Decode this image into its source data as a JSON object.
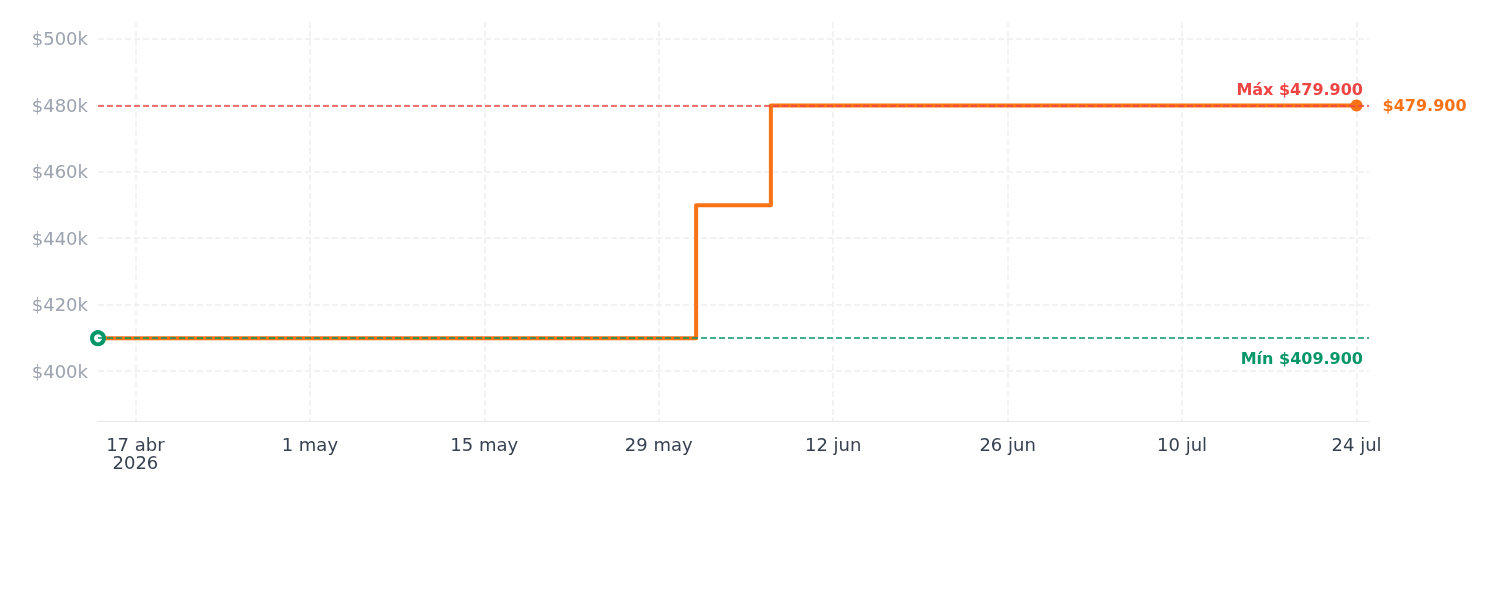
{
  "chart_data": {
    "type": "step",
    "x": [
      "2026-04-14",
      "2026-06-01",
      "2026-06-07",
      "2026-07-24"
    ],
    "series": [
      {
        "color": "#f97316",
        "values": [
          409900,
          449900,
          479900,
          479900
        ]
      }
    ],
    "xlim": [
      "2026-04-14",
      "2026-07-25"
    ],
    "xticks": [
      {
        "value": "2026-04-17",
        "label": "17 abr\n2026"
      },
      {
        "value": "2026-05-01",
        "label": "1 may"
      },
      {
        "value": "2026-05-15",
        "label": "15 may"
      },
      {
        "value": "2026-05-29",
        "label": "29 may"
      },
      {
        "value": "2026-06-12",
        "label": "12 jun"
      },
      {
        "value": "2026-06-26",
        "label": "26 jun"
      },
      {
        "value": "2026-07-10",
        "label": "10 jul"
      },
      {
        "value": "2026-07-24",
        "label": "24 jul"
      }
    ],
    "ylim": [
      385000,
      505000
    ],
    "yticks": [
      {
        "value": 400000,
        "label": "$400k"
      },
      {
        "value": 420000,
        "label": "$420k"
      },
      {
        "value": 440000,
        "label": "$440k"
      },
      {
        "value": 460000,
        "label": "$460k"
      },
      {
        "value": 480000,
        "label": "$480k"
      },
      {
        "value": 500000,
        "label": "$500k"
      }
    ],
    "ref_lines": [
      {
        "axis": "y",
        "value": 479900,
        "label": "Máx $479.900",
        "color": "#ef4444",
        "line_style": "dashed"
      },
      {
        "axis": "y",
        "value": 409900,
        "label": "Mín $409.900",
        "color": "#059669",
        "line_style": "dashed"
      }
    ],
    "annotations": [
      {
        "text": "$479.900",
        "x": "2026-07-24",
        "y": 479900
      }
    ],
    "grid": true,
    "marker": "circle",
    "line_style": "solid"
  }
}
